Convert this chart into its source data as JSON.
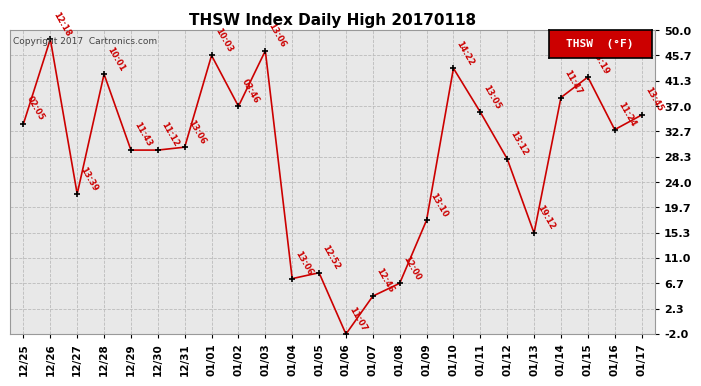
{
  "title": "THSW Index Daily High 20170118",
  "copyright": "Copyright 2017  Cartronics.com",
  "legend_label": "THSW  (°F)",
  "legend_bg": "#cc0000",
  "legend_text_color": "#ffffff",
  "line_color": "#cc0000",
  "marker_color": "#000000",
  "bg_color": "#ffffff",
  "plot_bg_color": "#e8e8e8",
  "grid_color": "#bbbbbb",
  "title_color": "#000000",
  "dates": [
    "12/25",
    "12/26",
    "12/27",
    "12/28",
    "12/29",
    "12/30",
    "12/31",
    "01/01",
    "01/02",
    "01/03",
    "01/04",
    "01/05",
    "01/06",
    "01/07",
    "01/08",
    "01/09",
    "01/10",
    "01/11",
    "01/12",
    "01/13",
    "01/14",
    "01/15",
    "01/16",
    "01/17"
  ],
  "yvalues": [
    34.0,
    48.5,
    22.0,
    42.5,
    29.5,
    29.5,
    30.0,
    45.7,
    37.0,
    46.5,
    7.5,
    8.5,
    -2.0,
    4.5,
    6.7,
    17.5,
    43.5,
    36.0,
    28.0,
    15.3,
    38.5,
    42.0,
    33.0,
    35.5
  ],
  "labels": [
    "02:05",
    "12:18",
    "13:39",
    "10:01",
    "11:43",
    "11:12",
    "13:06",
    "10:03",
    "03:46",
    "13:06",
    "13:06",
    "12:52",
    "11:07",
    "12:46",
    "12:00",
    "13:10",
    "14:22",
    "13:05",
    "13:12",
    "19:12",
    "11:47",
    "13:19",
    "11:24",
    "13:45"
  ],
  "ylim": [
    -2.0,
    50.0
  ],
  "yticks": [
    -2.0,
    2.3,
    6.7,
    11.0,
    15.3,
    19.7,
    24.0,
    28.3,
    32.7,
    37.0,
    41.3,
    45.7,
    50.0
  ],
  "figwidth": 6.9,
  "figheight": 3.75,
  "dpi": 100
}
